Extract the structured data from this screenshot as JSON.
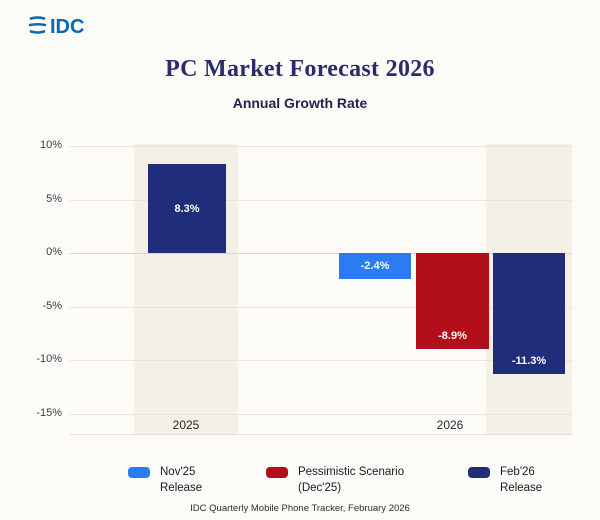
{
  "logo": {
    "text": "IDC"
  },
  "header": {
    "title": "PC Market Forecast 2026",
    "subtitle": "Annual Growth Rate"
  },
  "chart_data": {
    "type": "bar",
    "title": "PC Market Forecast 2026",
    "subtitle": "Annual Growth Rate",
    "ylabel": "Annual growth rate (%)",
    "ylim": [
      -15,
      10
    ],
    "yticks": [
      10,
      5,
      0,
      -5,
      -10,
      -15
    ],
    "ytick_labels": [
      "10%",
      "5%",
      "0%",
      "-5%",
      "-10%",
      "-15%"
    ],
    "grid": true,
    "legend_position": "bottom",
    "categories": [
      "2025",
      "2026"
    ],
    "bars": [
      {
        "group": "2025",
        "series": "Feb'26 Release",
        "value": 8.3,
        "label": "8.3%",
        "color": "#1f2d7b"
      },
      {
        "group": "2026",
        "series": "Nov'25 Release",
        "value": -2.4,
        "label": "-2.4%",
        "color": "#2b7bf3"
      },
      {
        "group": "2026",
        "series": "Pessimistic Scenario (Dec'25)",
        "value": -8.9,
        "label": "-8.9%",
        "color": "#b30f1b"
      },
      {
        "group": "2026",
        "series": "Feb'26 Release",
        "value": -11.3,
        "label": "-11.3%",
        "color": "#1f2d7b"
      }
    ]
  },
  "legend": [
    {
      "line1": "Nov'25",
      "line2": "Release",
      "color": "#2b7bf3"
    },
    {
      "line1": "Pessimistic Scenario",
      "line2": "(Dec'25)",
      "color": "#b30f1b"
    },
    {
      "line1": "Feb'26",
      "line2": "Release",
      "color": "#1f2d7b"
    }
  ],
  "footer": {
    "source": "IDC Quarterly Mobile Phone Tracker, February 2026"
  },
  "colors": {
    "navy": "#1f2d7b",
    "blue": "#2b7bf3",
    "red": "#b30f1b",
    "band": "#f2ece2",
    "background": "#fcfbf8",
    "logo_blue": "#0a67b4"
  }
}
